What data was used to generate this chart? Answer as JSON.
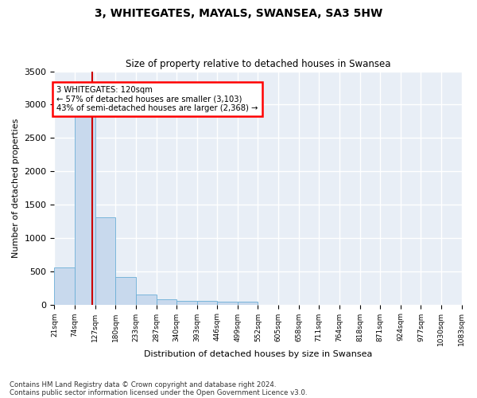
{
  "title": "3, WHITEGATES, MAYALS, SWANSEA, SA3 5HW",
  "subtitle": "Size of property relative to detached houses in Swansea",
  "xlabel": "Distribution of detached houses by size in Swansea",
  "ylabel": "Number of detached properties",
  "footnote1": "Contains HM Land Registry data © Crown copyright and database right 2024.",
  "footnote2": "Contains public sector information licensed under the Open Government Licence v3.0.",
  "annotation_line1": "3 WHITEGATES: 120sqm",
  "annotation_line2": "← 57% of detached houses are smaller (3,103)",
  "annotation_line3": "43% of semi-detached houses are larger (2,368) →",
  "bar_color": "#c8d9ed",
  "bar_edge_color": "#6aaed6",
  "red_line_x": 120,
  "red_line_color": "#cc0000",
  "background_color": "#e8eef6",
  "grid_color": "#ffffff",
  "bin_edges": [
    21,
    74,
    127,
    180,
    233,
    287,
    340,
    393,
    446,
    499,
    552,
    605,
    658,
    711,
    764,
    818,
    871,
    924,
    977,
    1030,
    1083
  ],
  "bar_values": [
    560,
    2930,
    1310,
    410,
    155,
    80,
    60,
    55,
    45,
    40,
    0,
    0,
    0,
    0,
    0,
    0,
    0,
    0,
    0,
    0
  ],
  "ylim": [
    0,
    3500
  ],
  "yticks": [
    0,
    500,
    1000,
    1500,
    2000,
    2500,
    3000,
    3500
  ]
}
